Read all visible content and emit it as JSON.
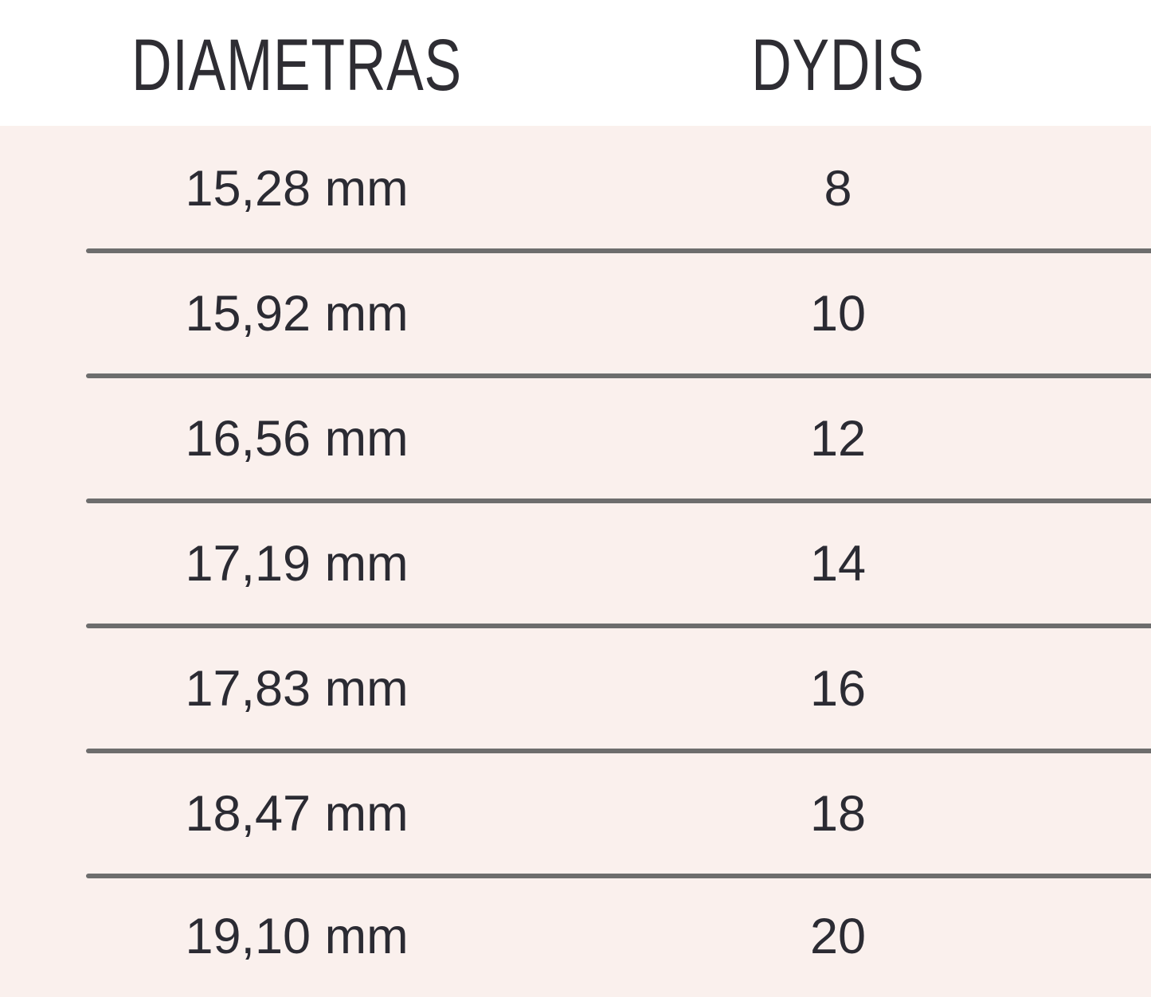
{
  "colors": {
    "header_background": "#ffffff",
    "body_background": "#faf0ed",
    "divider": "#6d6d6d",
    "text": "#2b2b33"
  },
  "table": {
    "headers": {
      "diameter": "DIAMETRAS",
      "size": "DYDIS"
    },
    "rows": [
      {
        "diameter": "15,28 mm",
        "size": "8"
      },
      {
        "diameter": "15,92 mm",
        "size": "10"
      },
      {
        "diameter": "16,56 mm",
        "size": "12"
      },
      {
        "diameter": "17,19 mm",
        "size": "14"
      },
      {
        "diameter": "17,83 mm",
        "size": "16"
      },
      {
        "diameter": "18,47 mm",
        "size": "18"
      },
      {
        "diameter": "19,10 mm",
        "size": "20"
      }
    ]
  },
  "chart_data": {
    "type": "table",
    "title": "",
    "columns": [
      "DIAMETRAS",
      "DYDIS"
    ],
    "rows": [
      [
        "15,28 mm",
        8
      ],
      [
        "15,92 mm",
        10
      ],
      [
        "16,56 mm",
        12
      ],
      [
        "17,19 mm",
        14
      ],
      [
        "17,83 mm",
        16
      ],
      [
        "18,47 mm",
        18
      ],
      [
        "19,10 mm",
        20
      ]
    ]
  }
}
